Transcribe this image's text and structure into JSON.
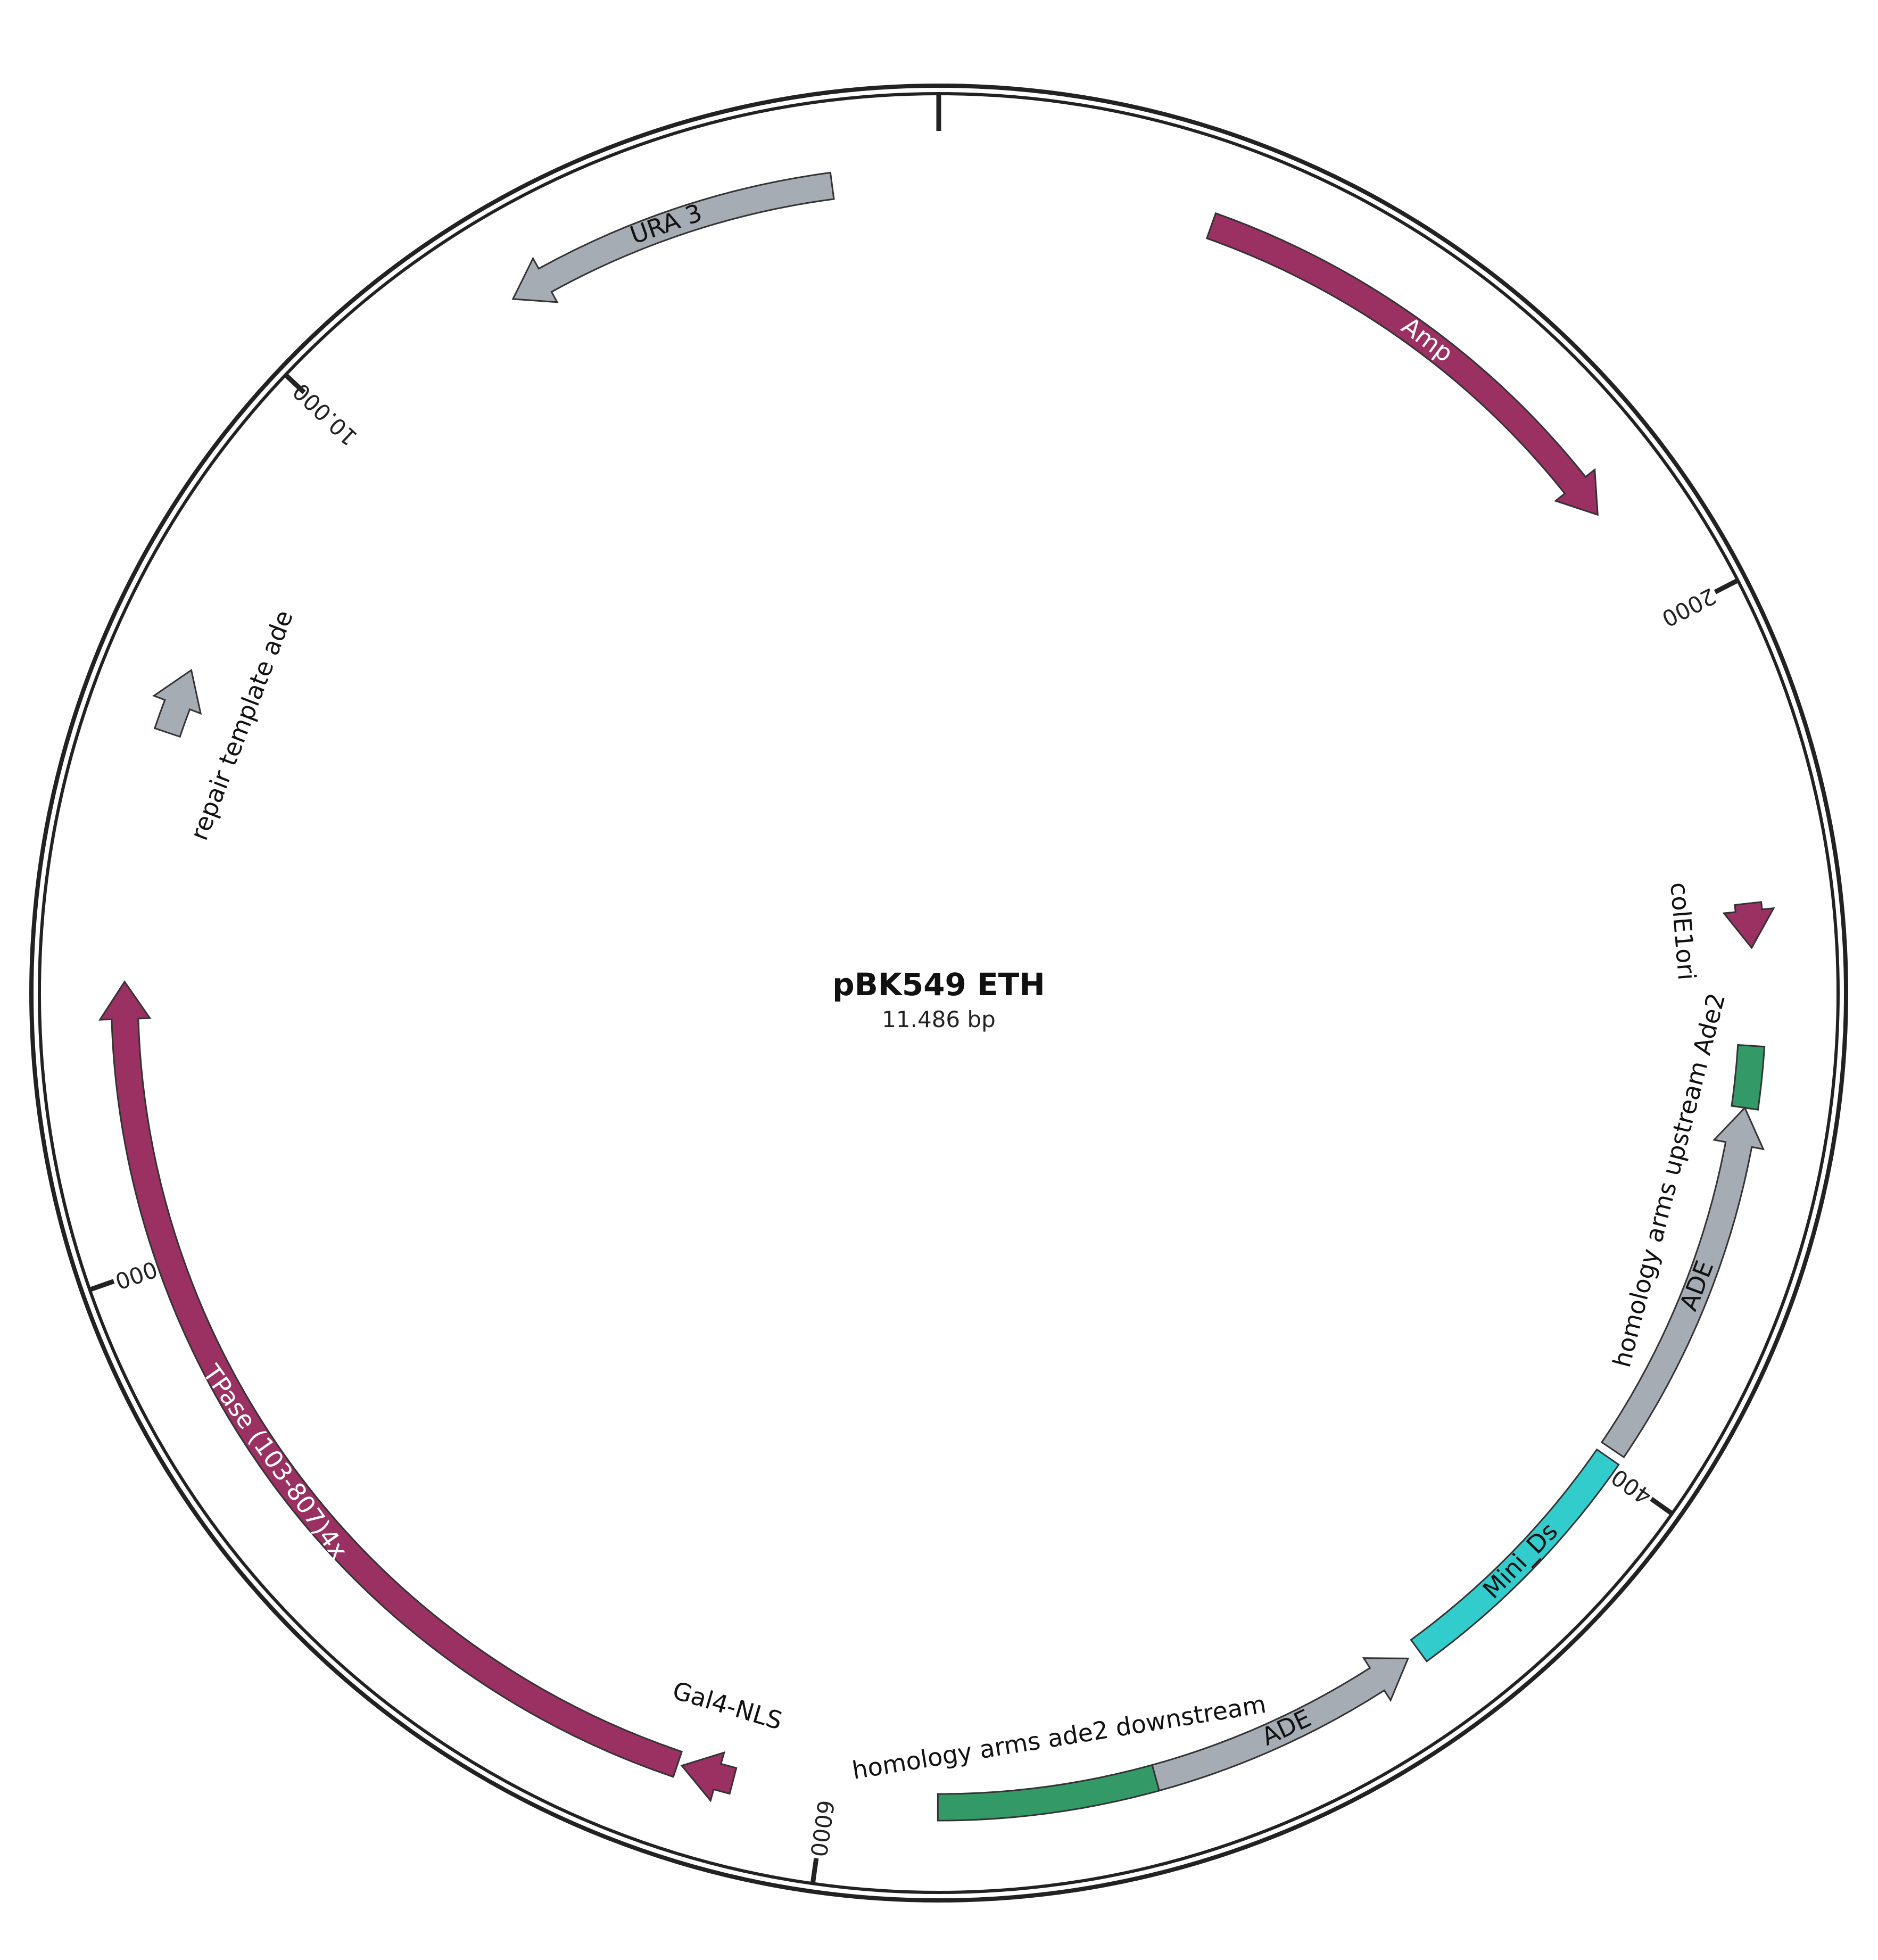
{
  "plasmid": {
    "name": "pBK549 ETH",
    "size_label": "11.486 bp",
    "length_bp": 11486
  },
  "colors": {
    "magenta": "#9b3063",
    "gray": "#a5acb4",
    "green": "#339966",
    "cyan": "#33cccc",
    "stroke": "#333333",
    "backbone": "#222222"
  },
  "ticks": [
    {
      "bp": 0,
      "label": ""
    },
    {
      "bp": 2000,
      "label": "2000"
    },
    {
      "bp": 4000,
      "label": "4000"
    },
    {
      "bp": 6000,
      "label": "6000"
    },
    {
      "bp": 8000,
      "label": "8000"
    },
    {
      "bp": 10000,
      "label": "10.000"
    }
  ],
  "features": [
    {
      "id": "amp",
      "label": "Amp",
      "start": 624,
      "end": 1724,
      "direction": "cw",
      "color": "magenta",
      "label_pos": "inside",
      "label_color": "#ffffff"
    },
    {
      "id": "cole1ori",
      "label": "colE1ori",
      "start": 2670,
      "end": 2770,
      "direction": "cw",
      "color": "magenta",
      "label_pos": "inner",
      "label_color": "#111111"
    },
    {
      "id": "homology-up-green",
      "label": "",
      "start": 2990,
      "end": 3130,
      "direction": "none",
      "color": "green",
      "label_pos": "none",
      "label_color": "#111111"
    },
    {
      "id": "ade-up",
      "label": "ADE",
      "start": 3130,
      "end": 3960,
      "direction": "ccw",
      "color": "gray",
      "label_pos": "inside",
      "label_color": "#111111"
    },
    {
      "id": "mini-ds",
      "label": "Mini_Ds",
      "start": 3980,
      "end": 4590,
      "direction": "none",
      "color": "cyan",
      "label_pos": "inside",
      "label_color": "#111111"
    },
    {
      "id": "ade-down",
      "label": "ADE",
      "start": 4620,
      "end": 5250,
      "direction": "ccw",
      "color": "gray",
      "label_pos": "inside",
      "label_color": "#111111"
    },
    {
      "id": "homology-down-green",
      "label": "",
      "start": 5250,
      "end": 5745,
      "direction": "none",
      "color": "green",
      "label_pos": "none",
      "label_color": "#111111"
    },
    {
      "id": "gal4-nls",
      "label": "Gal4-NLS",
      "start": 6210,
      "end": 6330,
      "direction": "cw",
      "color": "magenta",
      "label_pos": "inner",
      "label_color": "#111111"
    },
    {
      "id": "tpase",
      "label": "TPase (103-807)4x",
      "start": 6340,
      "end": 8640,
      "direction": "cw",
      "color": "magenta",
      "label_pos": "inside",
      "label_color": "#ffffff"
    },
    {
      "id": "repair-template",
      "label": "repair template ade",
      "start": 9210,
      "end": 9360,
      "direction": "cw",
      "color": "gray",
      "label_pos": "inner",
      "label_color": "#111111"
    },
    {
      "id": "ura3",
      "label": "URA 3",
      "start": 10480,
      "end": 11246,
      "direction": "ccw",
      "color": "gray",
      "label_pos": "inside",
      "label_color": "#111111"
    }
  ],
  "group_labels": [
    {
      "id": "homology-up-label",
      "label": "homology arms upstream Ade2",
      "bp": 3330
    },
    {
      "id": "homology-down-label",
      "label": "homology arms ade2 downstream",
      "bp": 5450
    }
  ]
}
